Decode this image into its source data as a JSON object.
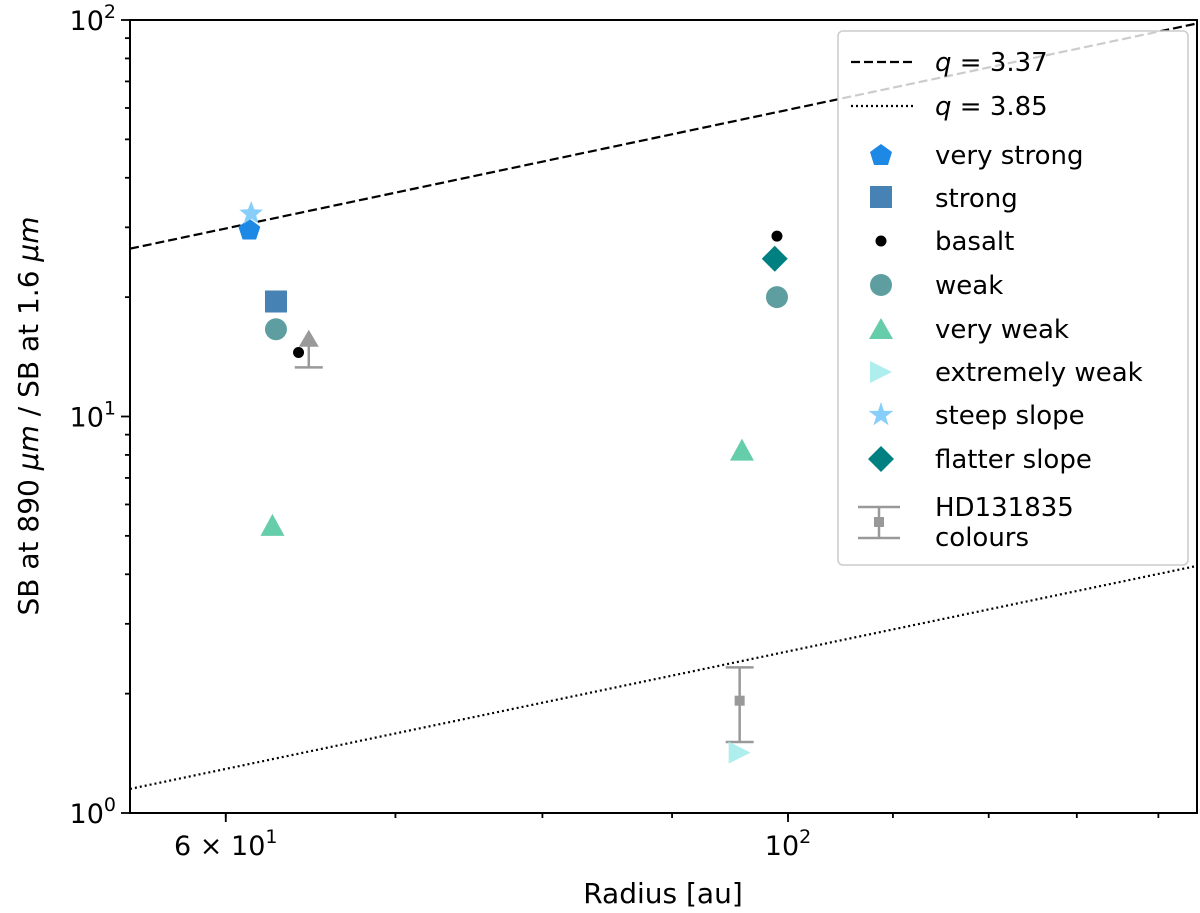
{
  "chart_data": {
    "type": "scatter",
    "xscale": "log",
    "yscale": "log",
    "xlim": [
      55,
      145
    ],
    "ylim": [
      1,
      100
    ],
    "xlabel": "Radius [au]",
    "ylabel": "SB at 890 μm / SB at 1.6 μm",
    "ylabel_parts": [
      "SB at 890 ",
      "μm",
      " / SB at 1.6 ",
      "μm"
    ],
    "x_ticks": [
      {
        "value": 60,
        "base": "6 × 10",
        "exp": "1"
      },
      {
        "value": 100,
        "base": "10",
        "exp": "2"
      }
    ],
    "y_ticks": [
      {
        "value": 1,
        "base": "10",
        "exp": "0"
      },
      {
        "value": 10,
        "base": "10",
        "exp": "1"
      },
      {
        "value": 100,
        "base": "10",
        "exp": "2"
      }
    ],
    "lines": [
      {
        "name": "q = 3.37",
        "q_label": "q",
        "q_value": "= 3.37",
        "style": "dashed",
        "color": "#000000",
        "x": [
          55,
          145
        ],
        "y": [
          26.5,
          98
        ]
      },
      {
        "name": "q = 3.85",
        "q_label": "q",
        "q_value": "= 3.85",
        "style": "dotted",
        "color": "#000000",
        "x": [
          55,
          145
        ],
        "y": [
          1.15,
          4.2
        ]
      }
    ],
    "series": [
      {
        "name": "very strong",
        "marker": "pentagon",
        "color": "#1e88e5",
        "points": [
          {
            "x": 61.3,
            "y": 29.5
          }
        ]
      },
      {
        "name": "strong",
        "marker": "square",
        "color": "#4682b4",
        "points": [
          {
            "x": 62.8,
            "y": 19.5
          }
        ]
      },
      {
        "name": "basalt",
        "marker": "dot",
        "color": "#000000",
        "points": [
          {
            "x": 64.1,
            "y": 14.5
          },
          {
            "x": 99.0,
            "y": 28.5
          }
        ]
      },
      {
        "name": "weak",
        "marker": "circle",
        "color": "#5f9ea0",
        "points": [
          {
            "x": 62.8,
            "y": 16.6
          },
          {
            "x": 99.0,
            "y": 20.0
          }
        ]
      },
      {
        "name": "very weak",
        "marker": "triangle-up",
        "color": "#66cdaa",
        "points": [
          {
            "x": 62.6,
            "y": 5.3
          },
          {
            "x": 95.9,
            "y": 8.2
          }
        ]
      },
      {
        "name": "extremely weak",
        "marker": "triangle-right",
        "color": "#afeeee",
        "points": [
          {
            "x": 95.7,
            "y": 1.42
          }
        ]
      },
      {
        "name": "steep slope",
        "marker": "star",
        "color": "#87cefa",
        "points": [
          {
            "x": 61.4,
            "y": 32.5
          }
        ]
      },
      {
        "name": "flatter slope",
        "marker": "diamond",
        "color": "#008080",
        "points": [
          {
            "x": 98.8,
            "y": 25.0
          }
        ]
      }
    ],
    "lower_limit": {
      "x": 64.7,
      "y": 13.3,
      "arrow_to": 15.8,
      "color": "#999999"
    },
    "errorbar": {
      "name": "HD131835 colours",
      "x": 95.7,
      "y": 1.92,
      "ylow": 1.51,
      "yhigh": 2.33,
      "color": "#999999"
    },
    "legend": {
      "placement": "top-right",
      "entries": [
        "q = 3.37",
        "q = 3.85",
        "very strong",
        "strong",
        "basalt",
        "weak",
        "very weak",
        "extremely weak",
        "steep slope",
        "flatter slope",
        "HD131835 colours"
      ],
      "errorbar_label_lines": [
        "HD131835",
        "colours"
      ]
    }
  }
}
